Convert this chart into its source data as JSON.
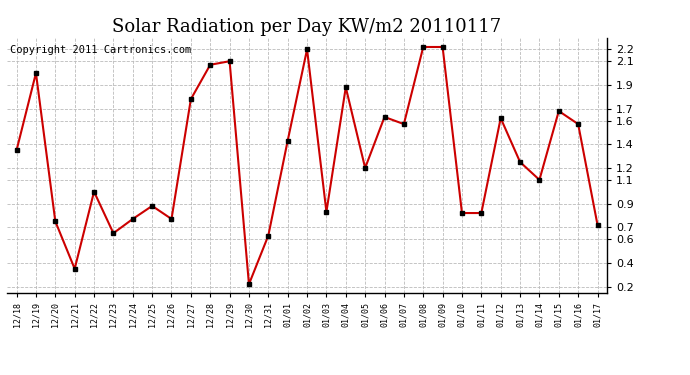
{
  "title": "Solar Radiation per Day KW/m2 20110117",
  "copyright": "Copyright 2011 Cartronics.com",
  "labels": [
    "12/18",
    "12/19",
    "12/20",
    "12/21",
    "12/22",
    "12/23",
    "12/24",
    "12/25",
    "12/26",
    "12/27",
    "12/28",
    "12/29",
    "12/30",
    "12/31",
    "01/01",
    "01/02",
    "01/03",
    "01/04",
    "01/05",
    "01/06",
    "01/07",
    "01/08",
    "01/09",
    "01/10",
    "01/11",
    "01/12",
    "01/13",
    "01/14",
    "01/15",
    "01/16",
    "01/17"
  ],
  "values": [
    1.35,
    2.0,
    0.75,
    0.35,
    1.0,
    0.65,
    0.77,
    0.88,
    0.77,
    1.78,
    2.07,
    2.1,
    0.22,
    0.63,
    1.43,
    2.2,
    0.83,
    1.88,
    1.2,
    1.63,
    1.57,
    2.22,
    2.22,
    0.82,
    0.82,
    1.62,
    1.25,
    1.1,
    1.68,
    1.57,
    0.72
  ],
  "line_color": "#cc0000",
  "marker_color": "#000000",
  "bg_color": "#ffffff",
  "grid_color": "#bbbbbb",
  "ylim": [
    0.15,
    2.3
  ],
  "yticks": [
    0.2,
    0.4,
    0.6,
    0.7,
    0.9,
    1.1,
    1.2,
    1.4,
    1.6,
    1.7,
    1.9,
    2.1,
    2.2
  ],
  "title_fontsize": 13,
  "copyright_fontsize": 7.5,
  "tick_fontsize": 8,
  "xtick_fontsize": 6
}
